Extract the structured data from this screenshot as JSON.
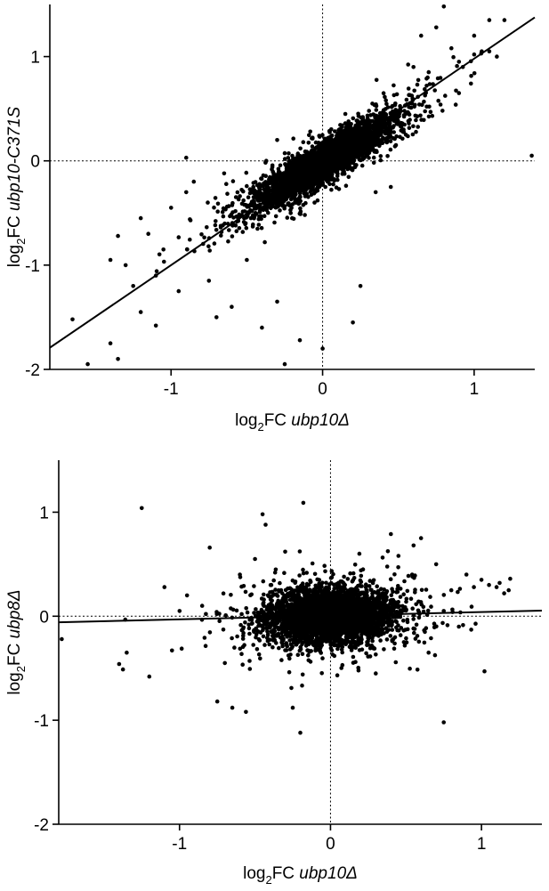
{
  "chart_data": [
    {
      "type": "scatter",
      "xlabel": {
        "prefix": "log",
        "sub": "2",
        "mid": "FC ",
        "gene": "ubp10Δ"
      },
      "ylabel": {
        "prefix": "log",
        "sub": "2",
        "mid": "FC ",
        "gene": "ubp10-C371S"
      },
      "xlim": [
        -1.8,
        1.4
      ],
      "ylim": [
        -2,
        1.5
      ],
      "xticks": [
        -1,
        0,
        1
      ],
      "yticks": [
        -2,
        -1,
        0,
        1
      ],
      "xtick_labels": [
        "-1",
        "0",
        "1"
      ],
      "ytick_labels": [
        "-2",
        "-1",
        "0",
        "1"
      ],
      "reference_lines": {
        "x": 0,
        "y": 0
      },
      "grid": false,
      "regression": {
        "slope": 0.99,
        "intercept": -0.01
      },
      "cluster": {
        "n": 3600,
        "center": [
          0.0,
          -0.02
        ],
        "sx": 0.22,
        "sy": 0.21,
        "corr": 0.9
      },
      "outliers": [
        {
          "x": 0.8,
          "y": 1.48
        },
        {
          "x": 1.1,
          "y": 1.35
        },
        {
          "x": 1.2,
          "y": 1.35
        },
        {
          "x": 1.0,
          "y": 1.02
        },
        {
          "x": 1.05,
          "y": 1.05
        },
        {
          "x": 1.1,
          "y": 1.05
        },
        {
          "x": 1.15,
          "y": 1.0
        },
        {
          "x": 1.38,
          "y": 0.05
        },
        {
          "x": -0.9,
          "y": 0.03
        },
        {
          "x": -1.55,
          "y": -1.95
        },
        {
          "x": -1.4,
          "y": -1.75
        },
        {
          "x": -1.35,
          "y": -1.9
        },
        {
          "x": -1.65,
          "y": -1.52
        },
        {
          "x": -1.1,
          "y": -1.58
        },
        {
          "x": -0.7,
          "y": -1.5
        },
        {
          "x": -0.4,
          "y": -1.6
        },
        {
          "x": -0.25,
          "y": -1.95
        },
        {
          "x": -0.15,
          "y": -1.72
        },
        {
          "x": 0.0,
          "y": -1.8
        },
        {
          "x": 0.2,
          "y": -1.55
        },
        {
          "x": -1.2,
          "y": -0.55
        },
        {
          "x": -1.35,
          "y": -0.72
        },
        {
          "x": -1.05,
          "y": -0.85
        },
        {
          "x": -1.15,
          "y": -0.7
        },
        {
          "x": -1.1,
          "y": -1.1
        },
        {
          "x": -1.3,
          "y": -1.0
        },
        {
          "x": -1.25,
          "y": -1.2
        },
        {
          "x": -0.95,
          "y": -1.25
        },
        {
          "x": -1.4,
          "y": -0.95
        },
        {
          "x": -1.2,
          "y": -1.45
        },
        {
          "x": -0.6,
          "y": -1.4
        },
        {
          "x": -0.3,
          "y": -1.35
        },
        {
          "x": -0.85,
          "y": -0.2
        },
        {
          "x": -0.9,
          "y": -0.3
        },
        {
          "x": -0.65,
          "y": -0.12
        },
        {
          "x": 0.25,
          "y": -1.2
        },
        {
          "x": 0.65,
          "y": 1.2
        },
        {
          "x": 0.7,
          "y": 0.85
        },
        {
          "x": 0.6,
          "y": 0.9
        },
        {
          "x": 0.9,
          "y": 0.65
        },
        {
          "x": 0.75,
          "y": 1.28
        },
        {
          "x": 0.55,
          "y": 0.25
        },
        {
          "x": -0.75,
          "y": -1.15
        },
        {
          "x": -0.5,
          "y": -0.95
        },
        {
          "x": 0.15,
          "y": 0.45
        },
        {
          "x": 0.35,
          "y": -0.3
        },
        {
          "x": 0.45,
          "y": -0.25
        },
        {
          "x": -0.3,
          "y": 0.2
        },
        {
          "x": 0.9,
          "y": 0.95
        },
        {
          "x": 1.0,
          "y": 1.2
        },
        {
          "x": 0.85,
          "y": 1.08
        },
        {
          "x": -1.0,
          "y": -0.45
        }
      ]
    },
    {
      "type": "scatter",
      "xlabel": {
        "prefix": "log",
        "sub": "2",
        "mid": "FC ",
        "gene": "ubp10Δ"
      },
      "ylabel": {
        "prefix": "log",
        "sub": "2",
        "mid": "FC ",
        "gene": "ubp8Δ"
      },
      "xlim": [
        -1.8,
        1.4
      ],
      "ylim": [
        -2,
        1.5
      ],
      "xticks": [
        -1,
        0,
        1
      ],
      "yticks": [
        -2,
        -1,
        0,
        1
      ],
      "xtick_labels": [
        "-1",
        "0",
        "1"
      ],
      "ytick_labels": [
        "-2",
        "-1",
        "0",
        "1"
      ],
      "reference_lines": {
        "x": 0,
        "y": 0
      },
      "grid": false,
      "regression": {
        "slope": 0.035,
        "intercept": 0.005
      },
      "cluster": {
        "n": 3600,
        "center": [
          0.0,
          0.0
        ],
        "sx": 0.2,
        "sy": 0.13,
        "corr": 0.05
      },
      "outliers": [
        {
          "x": -1.25,
          "y": 1.04
        },
        {
          "x": -0.45,
          "y": 0.98
        },
        {
          "x": -0.43,
          "y": 0.88
        },
        {
          "x": -0.18,
          "y": 1.09
        },
        {
          "x": -0.8,
          "y": 0.66
        },
        {
          "x": -1.1,
          "y": 0.28
        },
        {
          "x": -0.95,
          "y": 0.2
        },
        {
          "x": -1.4,
          "y": -0.46
        },
        {
          "x": -1.35,
          "y": -0.35
        },
        {
          "x": -1.2,
          "y": -0.58
        },
        {
          "x": -1.05,
          "y": -0.33
        },
        {
          "x": -1.78,
          "y": -0.22
        },
        {
          "x": -0.75,
          "y": -0.82
        },
        {
          "x": -0.65,
          "y": -0.88
        },
        {
          "x": -0.56,
          "y": -0.92
        },
        {
          "x": -0.25,
          "y": -0.88
        },
        {
          "x": -0.2,
          "y": -1.12
        },
        {
          "x": 0.75,
          "y": -1.02
        },
        {
          "x": 1.02,
          "y": -0.53
        },
        {
          "x": 1.15,
          "y": 0.22
        },
        {
          "x": 1.1,
          "y": 0.28
        },
        {
          "x": 1.18,
          "y": 0.25
        },
        {
          "x": 1.05,
          "y": 0.3
        },
        {
          "x": 1.12,
          "y": 0.32
        },
        {
          "x": 1.19,
          "y": 0.36
        },
        {
          "x": 1.0,
          "y": 0.35
        },
        {
          "x": 0.95,
          "y": 0.28
        },
        {
          "x": 0.9,
          "y": 0.4
        },
        {
          "x": 0.8,
          "y": 0.25
        },
        {
          "x": 0.6,
          "y": 0.75
        },
        {
          "x": 0.55,
          "y": 0.68
        },
        {
          "x": 0.4,
          "y": 0.79
        },
        {
          "x": -0.5,
          "y": 0.55
        },
        {
          "x": -0.6,
          "y": 0.4
        },
        {
          "x": -0.7,
          "y": -0.45
        },
        {
          "x": 0.3,
          "y": -0.55
        },
        {
          "x": 0.45,
          "y": 0.58
        },
        {
          "x": -0.3,
          "y": 0.62
        },
        {
          "x": 0.75,
          "y": 0.05
        },
        {
          "x": 0.85,
          "y": -0.1
        },
        {
          "x": -0.85,
          "y": 0.1
        },
        {
          "x": -1.0,
          "y": 0.05
        },
        {
          "x": 0.65,
          "y": -0.35
        },
        {
          "x": 0.7,
          "y": 0.5
        }
      ]
    }
  ]
}
